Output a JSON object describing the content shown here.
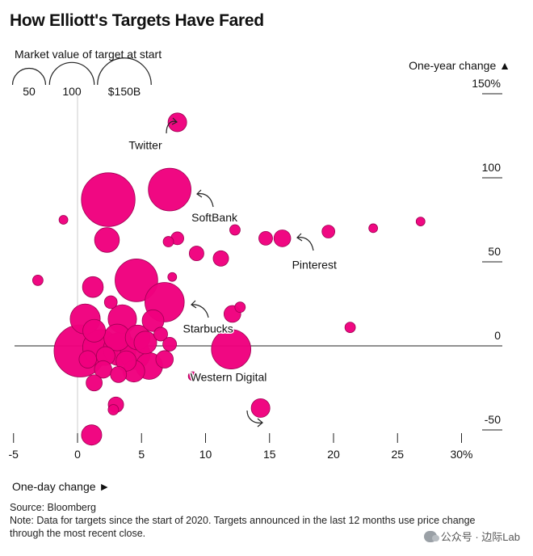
{
  "title": "How Elliott's Targets Have Fared",
  "size_legend": {
    "label": "Market value of target at start",
    "items": [
      {
        "label": "50",
        "value_b": 50
      },
      {
        "label": "100",
        "value_b": 100
      },
      {
        "label": "$150B",
        "value_b": 150
      }
    ]
  },
  "colors": {
    "bubble": "#f0007e",
    "bubble_stroke": "#9e0052",
    "axis": "#222222",
    "gridline": "#bbbbbb"
  },
  "chart_data": {
    "type": "scatter",
    "title": "How Elliott's Targets Have Fared",
    "xlabel": "One-day change ►",
    "ylabel": "One-year change ▲",
    "xlim": [
      -5,
      30
    ],
    "ylim": [
      -50,
      150
    ],
    "x_ticks": [
      {
        "value": -5,
        "label": "-5"
      },
      {
        "value": 0,
        "label": "0"
      },
      {
        "value": 5,
        "label": "5"
      },
      {
        "value": 10,
        "label": "10"
      },
      {
        "value": 15,
        "label": "15"
      },
      {
        "value": 20,
        "label": "20"
      },
      {
        "value": 25,
        "label": "25"
      },
      {
        "value": 30,
        "label": "30%"
      }
    ],
    "y_ticks": [
      {
        "value": 150,
        "label": "150%"
      },
      {
        "value": 100,
        "label": "100"
      },
      {
        "value": 50,
        "label": "50"
      },
      {
        "value": 0,
        "label": "0"
      },
      {
        "value": -50,
        "label": "-50"
      }
    ],
    "size_unit": "market value at start ($B)",
    "points": [
      {
        "x": 7.8,
        "y": 133,
        "size": 12,
        "label": "Twitter"
      },
      {
        "x": 2.4,
        "y": 87,
        "size": 150
      },
      {
        "x": 7.2,
        "y": 93,
        "size": 90,
        "label": "SoftBank"
      },
      {
        "x": -1.1,
        "y": 75,
        "size": 1
      },
      {
        "x": 2.3,
        "y": 63,
        "size": 25
      },
      {
        "x": 7.1,
        "y": 62,
        "size": 2
      },
      {
        "x": 7.8,
        "y": 64,
        "size": 4
      },
      {
        "x": 12.3,
        "y": 69,
        "size": 2
      },
      {
        "x": 14.7,
        "y": 64,
        "size": 5
      },
      {
        "x": 16.0,
        "y": 64,
        "size": 9,
        "label": "Pinterest"
      },
      {
        "x": 19.6,
        "y": 68,
        "size": 4
      },
      {
        "x": 23.1,
        "y": 70,
        "size": 1
      },
      {
        "x": 26.8,
        "y": 74,
        "size": 1
      },
      {
        "x": 9.3,
        "y": 55,
        "size": 6
      },
      {
        "x": 11.2,
        "y": 52,
        "size": 7
      },
      {
        "x": -3.1,
        "y": 39,
        "size": 2
      },
      {
        "x": 1.2,
        "y": 35,
        "size": 16
      },
      {
        "x": 4.6,
        "y": 39,
        "size": 90
      },
      {
        "x": 7.4,
        "y": 41,
        "size": 1
      },
      {
        "x": 6.8,
        "y": 26,
        "size": 75,
        "label": "Starbucks"
      },
      {
        "x": 12.1,
        "y": 19,
        "size": 9
      },
      {
        "x": 12.7,
        "y": 23,
        "size": 2
      },
      {
        "x": 21.3,
        "y": 11,
        "size": 2
      },
      {
        "x": 0.6,
        "y": 16,
        "size": 40
      },
      {
        "x": 2.6,
        "y": 26,
        "size": 4
      },
      {
        "x": 3.5,
        "y": 16,
        "size": 35
      },
      {
        "x": 5.9,
        "y": 15,
        "size": 18
      },
      {
        "x": 6.5,
        "y": 7,
        "size": 5
      },
      {
        "x": 1.3,
        "y": 9,
        "size": 20
      },
      {
        "x": 3.1,
        "y": 5,
        "size": 30
      },
      {
        "x": 4.7,
        "y": 5,
        "size": 25
      },
      {
        "x": 0.2,
        "y": -3,
        "size": 140
      },
      {
        "x": 1.8,
        "y": -1,
        "size": 60
      },
      {
        "x": 3.3,
        "y": -2,
        "size": 50
      },
      {
        "x": 4.5,
        "y": -5,
        "size": 40
      },
      {
        "x": 5.3,
        "y": 2,
        "size": 20
      },
      {
        "x": 7.2,
        "y": 1,
        "size": 5
      },
      {
        "x": 0.8,
        "y": -8,
        "size": 10
      },
      {
        "x": 2.2,
        "y": -6,
        "size": 12
      },
      {
        "x": 3.8,
        "y": -9,
        "size": 15
      },
      {
        "x": 5.6,
        "y": -12,
        "size": 30
      },
      {
        "x": 6.8,
        "y": -8,
        "size": 10
      },
      {
        "x": 2.0,
        "y": -14,
        "size": 10
      },
      {
        "x": 3.2,
        "y": -17,
        "size": 8
      },
      {
        "x": 4.4,
        "y": -15,
        "size": 18
      },
      {
        "x": 12.0,
        "y": -2,
        "size": 75,
        "label": "Western Digital"
      },
      {
        "x": 9.0,
        "y": -18,
        "size": 1
      },
      {
        "x": 1.3,
        "y": -22,
        "size": 8
      },
      {
        "x": 3.0,
        "y": -35,
        "size": 7
      },
      {
        "x": 2.8,
        "y": -38,
        "size": 2
      },
      {
        "x": 14.3,
        "y": -37,
        "size": 12
      },
      {
        "x": 1.1,
        "y": -53,
        "size": 15
      }
    ],
    "annotations": [
      {
        "text": "Twitter",
        "x": 5.3,
        "y": 117
      },
      {
        "text": "SoftBank",
        "x": 10.7,
        "y": 74
      },
      {
        "text": "Pinterest",
        "x": 18.5,
        "y": 46
      },
      {
        "text": "Starbucks",
        "x": 10.2,
        "y": 8
      },
      {
        "text": "Western Digital",
        "x": 11.8,
        "y": -21
      }
    ]
  },
  "footer": {
    "source": "Source: Bloomberg",
    "note_line1": "Note: Data for targets since the start of 2020. Targets announced in the last 12 months use price change",
    "note_line2": "through the most recent close."
  },
  "watermark": {
    "text": "公众号 · 边际Lab"
  }
}
